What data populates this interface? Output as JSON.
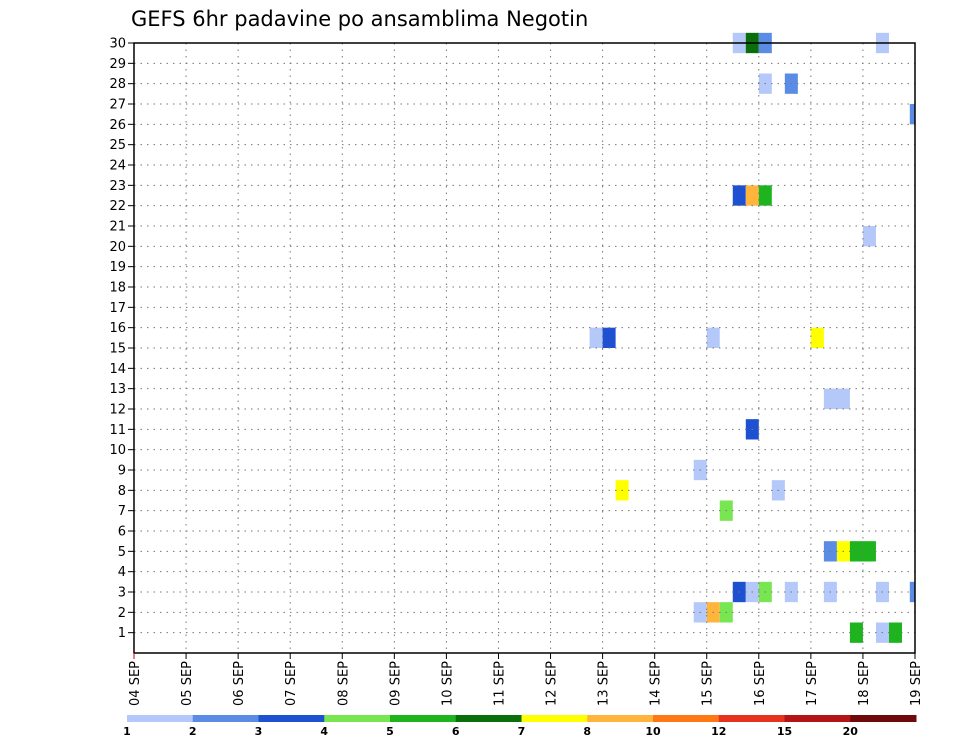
{
  "chart_data": {
    "type": "heatmap",
    "title": "GEFS 6hr padavine po ansamblima Negotin",
    "x_tick_labels": [
      "04 SEP",
      "05 SEP",
      "06 SEP",
      "07 SEP",
      "08 SEP",
      "09 SEP",
      "10 SEP",
      "11 SEP",
      "12 SEP",
      "13 SEP",
      "14 SEP",
      "15 SEP",
      "16 SEP",
      "17 SEP",
      "18 SEP",
      "19 SEP"
    ],
    "y_tick_labels": [
      "1",
      "2",
      "3",
      "4",
      "5",
      "6",
      "7",
      "8",
      "9",
      "10",
      "11",
      "12",
      "13",
      "14",
      "15",
      "16",
      "17",
      "18",
      "19",
      "20",
      "21",
      "22",
      "23",
      "24",
      "25",
      "26",
      "27",
      "28",
      "29",
      "30"
    ],
    "x_range_days": [
      0,
      15
    ],
    "y_range": [
      0,
      30
    ],
    "grid": true,
    "colorbar": {
      "colors": [
        "#b4c8fa",
        "#5a8ce6",
        "#1e50d2",
        "#78e650",
        "#1eb41e",
        "#0a6e0a",
        "#ffff00",
        "#ffb43c",
        "#ff7814",
        "#e6321e",
        "#b41414",
        "#6e0a0a"
      ],
      "tick_labels": [
        "1",
        "2",
        "3",
        "4",
        "5",
        "6",
        "7",
        "8",
        "10",
        "12",
        "15",
        "20"
      ]
    },
    "cells": [
      {
        "member": 1,
        "day_start": 13.75,
        "day_end": 14.0,
        "bin": 5
      },
      {
        "member": 1,
        "day_start": 14.25,
        "day_end": 14.5,
        "bin": 1
      },
      {
        "member": 1,
        "day_start": 14.5,
        "day_end": 14.75,
        "bin": 5
      },
      {
        "member": 2,
        "day_start": 10.75,
        "day_end": 11.0,
        "bin": 1
      },
      {
        "member": 2,
        "day_start": 11.0,
        "day_end": 11.25,
        "bin": 8
      },
      {
        "member": 2,
        "day_start": 11.25,
        "day_end": 11.5,
        "bin": 4
      },
      {
        "member": 3,
        "day_start": 11.5,
        "day_end": 11.75,
        "bin": 3
      },
      {
        "member": 3,
        "day_start": 11.75,
        "day_end": 12.0,
        "bin": 1
      },
      {
        "member": 3,
        "day_start": 12.0,
        "day_end": 12.25,
        "bin": 4
      },
      {
        "member": 3,
        "day_start": 12.5,
        "day_end": 12.75,
        "bin": 1
      },
      {
        "member": 3,
        "day_start": 13.25,
        "day_end": 13.5,
        "bin": 1
      },
      {
        "member": 3,
        "day_start": 14.25,
        "day_end": 14.5,
        "bin": 1
      },
      {
        "member": 3,
        "day_start": 14.9,
        "day_end": 15.0,
        "bin": 2
      },
      {
        "member": 5,
        "day_start": 13.25,
        "day_end": 13.5,
        "bin": 2
      },
      {
        "member": 5,
        "day_start": 13.5,
        "day_end": 13.75,
        "bin": 7
      },
      {
        "member": 5,
        "day_start": 13.75,
        "day_end": 14.25,
        "bin": 5
      },
      {
        "member": 7,
        "day_start": 11.25,
        "day_end": 11.5,
        "bin": 4
      },
      {
        "member": 8,
        "day_start": 9.25,
        "day_end": 9.5,
        "bin": 7
      },
      {
        "member": 8,
        "day_start": 12.25,
        "day_end": 12.5,
        "bin": 1
      },
      {
        "member": 9,
        "day_start": 10.75,
        "day_end": 11.0,
        "bin": 1
      },
      {
        "member": 11,
        "day_start": 11.75,
        "day_end": 12.0,
        "bin": 3
      },
      {
        "member": 12.5,
        "day_start": 13.25,
        "day_end": 13.75,
        "bin": 1
      },
      {
        "member": 15.5,
        "day_start": 8.75,
        "day_end": 9.0,
        "bin": 1
      },
      {
        "member": 15.5,
        "day_start": 9.0,
        "day_end": 9.25,
        "bin": 3
      },
      {
        "member": 15.5,
        "day_start": 11.0,
        "day_end": 11.25,
        "bin": 1
      },
      {
        "member": 15.5,
        "day_start": 13.0,
        "day_end": 13.25,
        "bin": 7
      },
      {
        "member": 20.5,
        "day_start": 14.0,
        "day_end": 14.25,
        "bin": 1
      },
      {
        "member": 22.5,
        "day_start": 11.5,
        "day_end": 11.75,
        "bin": 3
      },
      {
        "member": 22.5,
        "day_start": 11.75,
        "day_end": 12.0,
        "bin": 8
      },
      {
        "member": 22.5,
        "day_start": 12.0,
        "day_end": 12.25,
        "bin": 5
      },
      {
        "member": 26.5,
        "day_start": 14.9,
        "day_end": 15.0,
        "bin": 2
      },
      {
        "member": 28,
        "day_start": 12.0,
        "day_end": 12.25,
        "bin": 1
      },
      {
        "member": 28,
        "day_start": 12.5,
        "day_end": 12.75,
        "bin": 2
      },
      {
        "member": 30,
        "day_start": 11.5,
        "day_end": 11.75,
        "bin": 1
      },
      {
        "member": 30,
        "day_start": 11.75,
        "day_end": 12.0,
        "bin": 6
      },
      {
        "member": 30,
        "day_start": 12.0,
        "day_end": 12.25,
        "bin": 2
      },
      {
        "member": 30,
        "day_start": 14.25,
        "day_end": 14.5,
        "bin": 1
      }
    ]
  }
}
